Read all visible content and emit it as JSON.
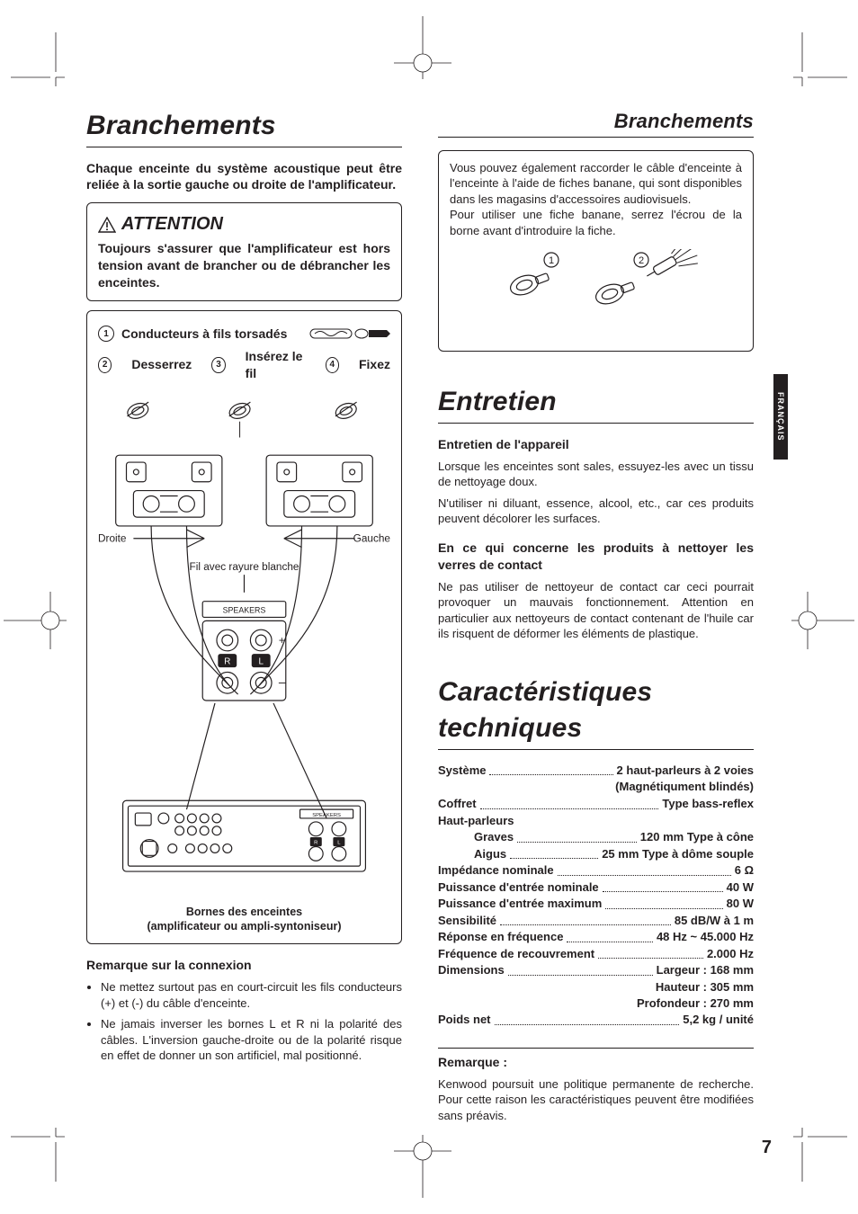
{
  "page_number": "7",
  "language_tab": "FRANÇAIS",
  "colors": {
    "text": "#231f20",
    "background": "#ffffff",
    "tab_bg": "#231f20",
    "tab_fg": "#ffffff",
    "rule": "#231f20"
  },
  "left": {
    "h1": "Branchements",
    "intro": "Chaque enceinte du système acoustique peut être reliée à la sortie gauche ou droite de l'amplificateur.",
    "attention_label": "ATTENTION",
    "attention_text": "Toujours s'assurer que l'amplificateur est hors tension avant de brancher ou de débrancher les enceintes.",
    "steps": {
      "s1": "Conducteurs à fils torsadés",
      "s2": "Desserrez",
      "s3": "Insérez le fil",
      "s4": "Fixez"
    },
    "labels": {
      "right": "Droite",
      "left": "Gauche",
      "wire": "Fil avec rayure blanche",
      "caption1": "Bornes des enceintes",
      "caption2": "(amplificateur ou ampli-syntoniseur)"
    },
    "note_head": "Remarque sur la connexion",
    "notes": [
      "Ne mettez surtout pas en court-circuit les fils conducteurs (+) et (-) du câble d'enceinte.",
      "Ne jamais inverser les bornes L et R ni la polarité des câbles. L'inversion gauche-droite ou de la polarité risque en effet de donner un son artificiel, mal positionné."
    ]
  },
  "right": {
    "h_sub": "Branchements",
    "banana_text": "Vous pouvez également raccorder le câble d'enceinte à l'enceinte à l'aide de fiches banane, qui sont disponibles dans les magasins d'accessoires audiovisuels.\nPour utiliser une fiche banane, serrez l'écrou de la borne avant d'introduire la fiche.",
    "h_entretien": "Entretien",
    "maint_head": "Entretien de l'appareil",
    "maint_p1": "Lorsque les enceintes sont sales, essuyez-les avec un tissu de nettoyage doux.",
    "maint_p2": "N'utiliser ni diluant, essence, alcool, etc., car ces produits peuvent décolorer les surfaces.",
    "maint_head2": "En ce qui concerne les produits à nettoyer les verres de contact",
    "maint_p3": "Ne pas utiliser de nettoyeur de contact car ceci pourrait provoquer un mauvais fonctionnement. Attention en particulier aux nettoyeurs de contact contenant de l'huile car ils risquent de déformer les éléments de plastique.",
    "h_specs": "Caractéristiques techniques",
    "specs": [
      {
        "k": "Système",
        "v": "2 haut-parleurs à 2 voies"
      },
      {
        "sub": "(Magnétiqument blindés)"
      },
      {
        "k": "Coffret",
        "v": "Type bass-reflex"
      },
      {
        "k": "Haut-parleurs",
        "v": ""
      },
      {
        "k": "Graves",
        "v": "120 mm Type à cône",
        "indent": true
      },
      {
        "k": "Aigus",
        "v": "25 mm Type à dôme souple",
        "indent": true
      },
      {
        "k": "Impédance nominale",
        "v": "6 Ω"
      },
      {
        "k": "Puissance d'entrée nominale",
        "v": "40 W"
      },
      {
        "k": "Puissance d'entrée maximum",
        "v": "80 W"
      },
      {
        "k": "Sensibilité",
        "v": "85 dB/W à 1 m"
      },
      {
        "k": "Réponse en fréquence",
        "v": "48 Hz ~ 45.000 Hz"
      },
      {
        "k": "Fréquence de recouvrement",
        "v": "2.000 Hz"
      },
      {
        "k": "Dimensions",
        "v": "Largeur : 168 mm"
      },
      {
        "sub": "Hauteur : 305 mm"
      },
      {
        "sub": "Profondeur : 270 mm"
      },
      {
        "k": "Poids net",
        "v": "5,2 kg / unité"
      }
    ],
    "remark_head": "Remarque :",
    "remark_body": "Kenwood poursuit une politique permanente de recherche. Pour cette raison les caractéristiques peuvent être modifiées sans préavis."
  }
}
